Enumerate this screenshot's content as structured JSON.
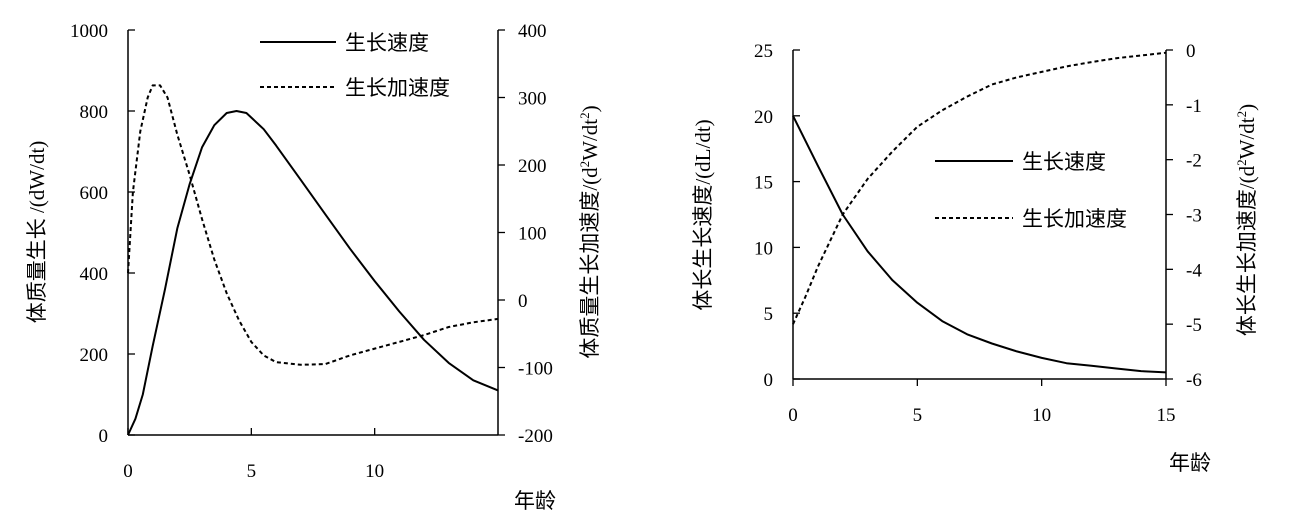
{
  "chart_data": [
    {
      "type": "line",
      "xlabel": "年龄",
      "ylabel": "体质量生长 /(dW/dt)",
      "y2label_main": "体质量生长加速度/(d",
      "y2label_sup": "2",
      "y2label_tail": "W/dt",
      "y2label_sup2": "2",
      "y2label_close": ")",
      "xlim": [
        0,
        15
      ],
      "ylim": [
        0,
        1000
      ],
      "y2lim": [
        -200,
        400
      ],
      "xticks": [
        "0",
        "5",
        "10"
      ],
      "xtick_values": [
        0,
        5,
        10
      ],
      "yticks": [
        "0",
        "200",
        "400",
        "600",
        "800",
        "1000"
      ],
      "ytick_values": [
        0,
        200,
        400,
        600,
        800,
        1000
      ],
      "y2ticks": [
        "-200",
        "-100",
        "0",
        "100",
        "200",
        "300",
        "400"
      ],
      "y2tick_values": [
        -200,
        -100,
        0,
        100,
        200,
        300,
        400
      ],
      "legend_position": "top-right",
      "series": [
        {
          "name": "生长速度",
          "axis": "left",
          "style": "solid",
          "color": "#000000",
          "points": [
            [
              0,
              0
            ],
            [
              0.3,
              40
            ],
            [
              0.6,
              100
            ],
            [
              1,
              220
            ],
            [
              1.5,
              360
            ],
            [
              2,
              510
            ],
            [
              2.5,
              620
            ],
            [
              3,
              710
            ],
            [
              3.5,
              765
            ],
            [
              4,
              795
            ],
            [
              4.4,
              800
            ],
            [
              4.8,
              795
            ],
            [
              5.5,
              755
            ],
            [
              6,
              715
            ],
            [
              7,
              630
            ],
            [
              8,
              545
            ],
            [
              9,
              460
            ],
            [
              10,
              380
            ],
            [
              11,
              305
            ],
            [
              12,
              235
            ],
            [
              13,
              178
            ],
            [
              14,
              135
            ],
            [
              15,
              110
            ]
          ]
        },
        {
          "name": "生长加速度",
          "axis": "right",
          "style": "dashed",
          "color": "#000000",
          "points": [
            [
              0,
              40
            ],
            [
              0.2,
              160
            ],
            [
              0.5,
              250
            ],
            [
              0.8,
              300
            ],
            [
              1,
              318
            ],
            [
              1.3,
              318
            ],
            [
              1.6,
              300
            ],
            [
              2,
              245
            ],
            [
              2.5,
              185
            ],
            [
              3,
              120
            ],
            [
              3.5,
              60
            ],
            [
              4,
              10
            ],
            [
              4.5,
              -30
            ],
            [
              5,
              -62
            ],
            [
              5.5,
              -82
            ],
            [
              6,
              -92
            ],
            [
              7,
              -96
            ],
            [
              8,
              -95
            ],
            [
              9,
              -82
            ],
            [
              10,
              -72
            ],
            [
              11,
              -62
            ],
            [
              12,
              -52
            ],
            [
              13,
              -40
            ],
            [
              14,
              -33
            ],
            [
              15,
              -28
            ]
          ]
        }
      ]
    },
    {
      "type": "line",
      "xlabel": "年龄",
      "ylabel": "体长生长速度/(dL/dt)",
      "y2label_main": "体长生长加速度/(d",
      "y2label_sup": "2",
      "y2label_tail": "W/dt",
      "y2label_sup2": "2",
      "y2label_close": ")",
      "xlim": [
        0,
        15
      ],
      "ylim": [
        0,
        25
      ],
      "y2lim": [
        -6,
        0
      ],
      "xticks": [
        "0",
        "5",
        "10",
        "15"
      ],
      "xtick_values": [
        0,
        5,
        10,
        15
      ],
      "yticks": [
        "0",
        "5",
        "10",
        "15",
        "20",
        "25"
      ],
      "ytick_values": [
        0,
        5,
        10,
        15,
        20,
        25
      ],
      "y2ticks": [
        "-6",
        "-5",
        "-4",
        "-3",
        "-2",
        "-1",
        "0"
      ],
      "y2tick_values": [
        -6,
        -5,
        -4,
        -3,
        -2,
        -1,
        0
      ],
      "legend_position": "center-right",
      "series": [
        {
          "name": "生长速度",
          "axis": "left",
          "style": "solid",
          "color": "#000000",
          "points": [
            [
              0,
              20
            ],
            [
              1,
              16.2
            ],
            [
              2,
              12.5
            ],
            [
              3,
              9.7
            ],
            [
              4,
              7.5
            ],
            [
              5,
              5.8
            ],
            [
              6,
              4.4
            ],
            [
              7,
              3.4
            ],
            [
              8,
              2.7
            ],
            [
              9,
              2.1
            ],
            [
              10,
              1.6
            ],
            [
              11,
              1.2
            ],
            [
              12,
              1.0
            ],
            [
              13,
              0.8
            ],
            [
              14,
              0.6
            ],
            [
              15,
              0.5
            ]
          ]
        },
        {
          "name": "生长加速度",
          "axis": "right",
          "style": "dashed",
          "color": "#000000",
          "points": [
            [
              0,
              -5.0
            ],
            [
              0.5,
              -4.5
            ],
            [
              1,
              -3.95
            ],
            [
              2,
              -3.0
            ],
            [
              3,
              -2.35
            ],
            [
              4,
              -1.85
            ],
            [
              5,
              -1.4
            ],
            [
              6,
              -1.1
            ],
            [
              7,
              -0.85
            ],
            [
              8,
              -0.63
            ],
            [
              9,
              -0.5
            ],
            [
              10,
              -0.4
            ],
            [
              11,
              -0.3
            ],
            [
              12,
              -0.22
            ],
            [
              13,
              -0.15
            ],
            [
              14,
              -0.1
            ],
            [
              15,
              -0.05
            ]
          ]
        }
      ]
    }
  ]
}
